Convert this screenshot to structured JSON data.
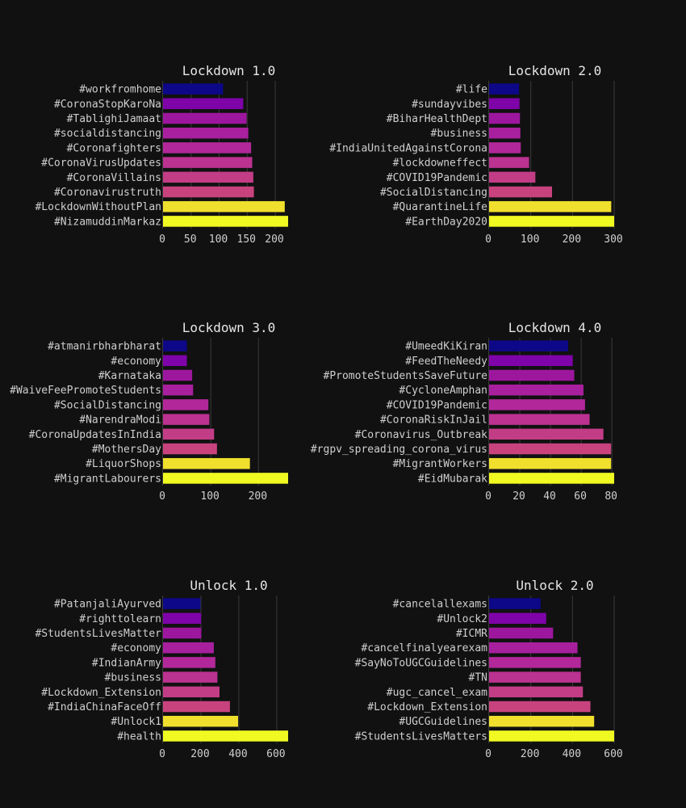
{
  "chart_data": [
    {
      "type": "bar",
      "orientation": "horizontal",
      "title": "Lockdown 1.0",
      "categories": [
        "#workfromhome",
        "#CoronaStopKaroNa",
        "#TablighiJamaat",
        "#socialdistancing",
        "#Coronafighters",
        "#CoronaVirusUpdates",
        "#CoronaVillains",
        "#Coronavirustruth",
        "#LockdownWithoutPlan",
        "#NizamuddinMarkaz"
      ],
      "values": [
        107,
        143,
        149,
        152,
        157,
        159,
        161,
        162,
        217,
        223
      ],
      "xlim": [
        0,
        223
      ],
      "xticks": [
        0,
        50,
        100,
        150,
        200
      ],
      "grid": true
    },
    {
      "type": "bar",
      "orientation": "horizontal",
      "title": "Lockdown 2.0",
      "categories": [
        "#life",
        "#sundayvibes",
        "#BiharHealthDept",
        "#business",
        "#IndiaUnitedAgainstCorona",
        "#lockdowneffect",
        "#COVID19Pandemic",
        "#SocialDistancing",
        "#QuarantineLife",
        "#EarthDay2020"
      ],
      "values": [
        72,
        73,
        74,
        75,
        76,
        96,
        111,
        151,
        293,
        300
      ],
      "xlim": [
        0,
        300
      ],
      "xticks": [
        0,
        100,
        200,
        300
      ],
      "grid": true
    },
    {
      "type": "bar",
      "orientation": "horizontal",
      "title": "Lockdown 3.0",
      "categories": [
        "#atmanirbharbharat",
        "#economy",
        "#Karnataka",
        "#WaiveFeePromoteStudents",
        "#SocialDistancing",
        "#NarendraModi",
        "#CoronaUpdatesInIndia",
        "#MothersDay",
        "#LiquorShops",
        "#MigrantLabourers"
      ],
      "values": [
        50,
        50,
        61,
        63,
        95,
        97,
        107,
        113,
        182,
        262
      ],
      "xlim": [
        0,
        262
      ],
      "xticks": [
        0,
        100,
        200
      ],
      "grid": true
    },
    {
      "type": "bar",
      "orientation": "horizontal",
      "title": "Lockdown 4.0",
      "categories": [
        "#UmeedKiKiran",
        "#FeedTheNeedy",
        "#PromoteStudentsSaveFuture",
        "#CycloneAmphan",
        "#COVID19Pandemic",
        "#CoronaRiskInJail",
        "#Coronavirus_Outbreak",
        "#rgpv_spreading_corona_virus",
        "#MigrantWorkers",
        "#EidMubarak"
      ],
      "values": [
        51.5,
        54.5,
        55.5,
        61.5,
        62.5,
        65.5,
        74.5,
        79.5,
        79.5,
        81.5
      ],
      "xlim": [
        0,
        81.5
      ],
      "xticks": [
        0,
        20,
        40,
        60,
        80
      ],
      "grid": true
    },
    {
      "type": "bar",
      "orientation": "horizontal",
      "title": "Unlock 1.0",
      "categories": [
        "#PatanjaliAyurved",
        "#righttolearn",
        "#StudentsLivesMatter",
        "#economy",
        "#IndianArmy",
        "#business",
        "#Lockdown_Extension",
        "#IndiaChinaFaceOff",
        "#Unlock1",
        "#health"
      ],
      "values": [
        198,
        201,
        202,
        268,
        276,
        287,
        298,
        353,
        396,
        660
      ],
      "xlim": [
        0,
        660
      ],
      "xticks": [
        0,
        200,
        400,
        600
      ],
      "grid": true
    },
    {
      "type": "bar",
      "orientation": "horizontal",
      "title": "Unlock 2.0",
      "categories": [
        "#cancelallexams",
        "#Unlock2",
        "#ICMR",
        "#cancelfinalyearexam",
        "#SayNoToUGCGuidelines",
        "#TN",
        "#ugc_cancel_exam",
        "#Lockdown_Extension",
        "#UGCGuidelines",
        "#StudentsLivesMatters"
      ],
      "values": [
        247,
        274,
        307,
        424,
        440,
        440,
        450,
        486,
        504,
        600
      ],
      "xlim": [
        0,
        600
      ],
      "xticks": [
        0,
        200,
        400,
        600
      ],
      "grid": true
    }
  ],
  "colors": {
    "background": "#111111",
    "bar_palette": [
      "#0d0887",
      "#7e03a8",
      "#9c179e",
      "#a8209e",
      "#b2289a",
      "#bb3290",
      "#c23d86",
      "#c8437e",
      "#f0df2d",
      "#f0f921"
    ]
  }
}
